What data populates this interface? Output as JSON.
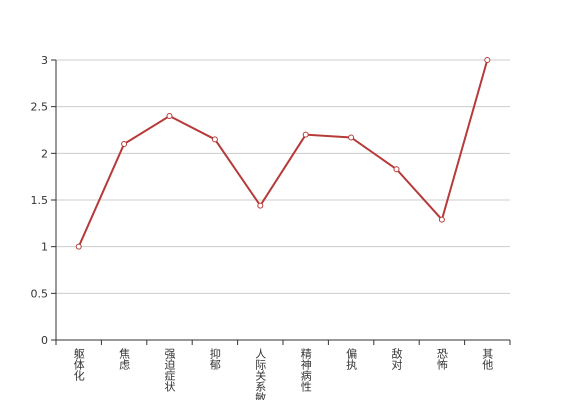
{
  "chart_data": {
    "type": "line",
    "categories": [
      "躯体化",
      "焦虑",
      "强迫症状",
      "抑郁",
      "人际关系敏感",
      "精神病性",
      "偏执",
      "敌对",
      "恐怖",
      "其他"
    ],
    "values": [
      1,
      2.1,
      2.4,
      2.15,
      1.44,
      2.2,
      2.17,
      1.83,
      1.29,
      3
    ],
    "color": "#b73a3a",
    "ylim": [
      0,
      3
    ],
    "yticks": [
      0,
      0.5,
      1,
      1.5,
      2,
      2.5,
      3
    ],
    "grid": true
  }
}
